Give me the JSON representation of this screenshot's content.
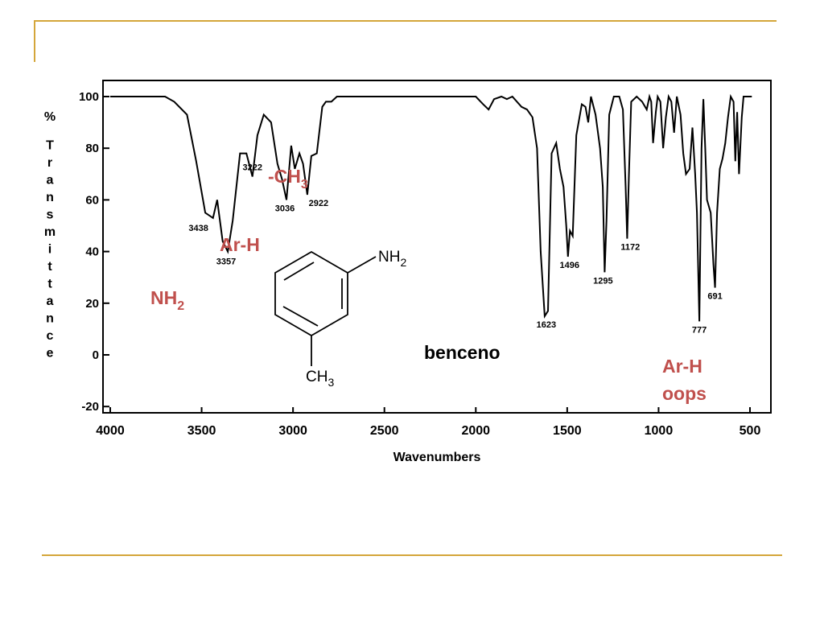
{
  "slide": {
    "rule_color": "#d4a63a"
  },
  "chart_data": {
    "type": "line",
    "xlabel": "Wavenumbers",
    "ylabel": "% Transmittance",
    "xlim": [
      4000,
      500
    ],
    "ylim": [
      -20,
      105
    ],
    "x_ticks": [
      4000,
      3500,
      3000,
      2500,
      2000,
      1500,
      1000,
      500
    ],
    "y_ticks": [
      100,
      80,
      60,
      40,
      20,
      0,
      -20
    ],
    "x_tick_labels": [
      "4000",
      "3500",
      "3000",
      "2500",
      "2000",
      "1500",
      "1000",
      "500"
    ],
    "y_tick_labels": [
      "100",
      "80",
      "60",
      "40",
      "20",
      "0",
      "-20"
    ],
    "series": [
      {
        "x": [
          4000,
          3700,
          3650,
          3580,
          3530,
          3480,
          3438,
          3415,
          3385,
          3357,
          3330,
          3290,
          3255,
          3222,
          3195,
          3160,
          3120,
          3085,
          3060,
          3036,
          3010,
          2990,
          2965,
          2945,
          2922,
          2900,
          2870,
          2840,
          2820,
          2790,
          2760,
          2700,
          2600,
          2400,
          2100,
          2000,
          1960,
          1930,
          1900,
          1860,
          1830,
          1800,
          1750,
          1720,
          1690,
          1665,
          1645,
          1623,
          1605,
          1585,
          1560,
          1540,
          1520,
          1505,
          1496,
          1485,
          1470,
          1450,
          1420,
          1400,
          1385,
          1370,
          1345,
          1320,
          1305,
          1295,
          1285,
          1270,
          1245,
          1215,
          1195,
          1180,
          1172,
          1162,
          1150,
          1120,
          1090,
          1065,
          1050,
          1040,
          1030,
          1015,
          1005,
          990,
          975,
          960,
          945,
          930,
          915,
          900,
          880,
          865,
          850,
          830,
          815,
          800,
          790,
          777,
          765,
          755,
          745,
          735,
          715,
          700,
          691,
          680,
          665,
          650,
          635,
          620,
          605,
          590,
          580,
          570,
          560,
          545,
          535,
          520,
          500,
          490
        ],
        "y": [
          100,
          100,
          98,
          93,
          75,
          55,
          53,
          60,
          44,
          40,
          52,
          78,
          78,
          69,
          85,
          93,
          90,
          74,
          68,
          60,
          81,
          72,
          78,
          74,
          62,
          77,
          78,
          96,
          98,
          98,
          100,
          100,
          100,
          100,
          100,
          100,
          97,
          95,
          99,
          100,
          99,
          100,
          96,
          95,
          92,
          80,
          40,
          15,
          17,
          78,
          82,
          72,
          65,
          50,
          38,
          48,
          46,
          85,
          97,
          96,
          90,
          100,
          93,
          80,
          65,
          32,
          52,
          93,
          100,
          100,
          95,
          65,
          45,
          70,
          98,
          100,
          98,
          95,
          100,
          98,
          82,
          94,
          100,
          98,
          80,
          92,
          100,
          98,
          86,
          100,
          93,
          78,
          70,
          72,
          88,
          70,
          55,
          13,
          80,
          99,
          80,
          60,
          55,
          35,
          26,
          55,
          72,
          76,
          82,
          92,
          100,
          98,
          75,
          94,
          70,
          92,
          100,
          100,
          100,
          100
        ]
      }
    ],
    "peak_labels": [
      {
        "x": 3438,
        "text": "3438"
      },
      {
        "x": 3357,
        "text": "3357"
      },
      {
        "x": 3222,
        "text": "3222"
      },
      {
        "x": 3036,
        "text": "3036"
      },
      {
        "x": 2922,
        "text": "2922"
      },
      {
        "x": 1623,
        "text": "1623"
      },
      {
        "x": 1496,
        "text": "1496"
      },
      {
        "x": 1295,
        "text": "1295"
      },
      {
        "x": 1172,
        "text": "1172"
      },
      {
        "x": 777,
        "text": "777"
      },
      {
        "x": 691,
        "text": "691"
      }
    ],
    "annotations": {
      "nh2": {
        "main": "NH",
        "sub": "2"
      },
      "arh": "Ar-H",
      "ch3": {
        "main": "-CH",
        "sub": "3"
      },
      "benceno": "benceno",
      "arh_oops_1": "Ar-H",
      "arh_oops_2": "oops",
      "accent_color": "#c0504d"
    },
    "molecule": {
      "nh2": {
        "main": "NH",
        "sub": "2"
      },
      "ch3": {
        "main": "CH",
        "sub": "3"
      }
    }
  }
}
